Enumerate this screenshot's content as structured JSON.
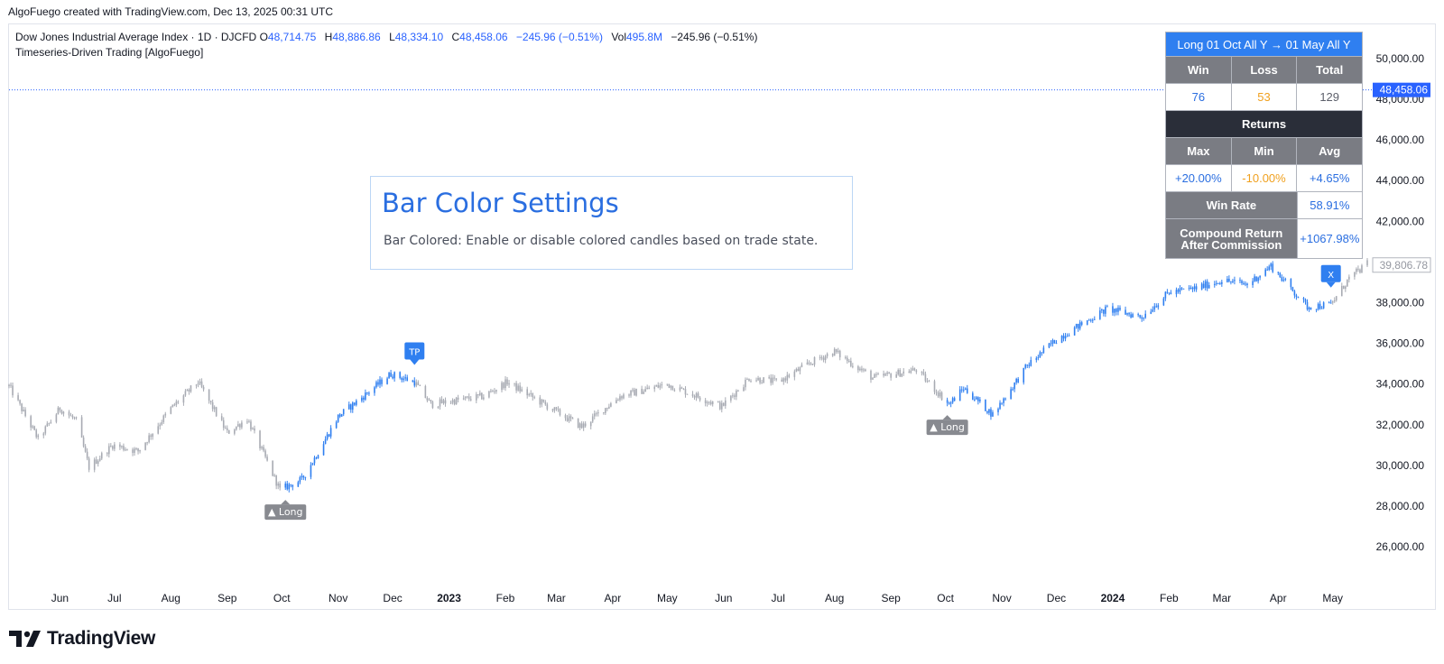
{
  "header": {
    "caption": "AlgoFuego created with TradingView.com, Dec 13, 2025 00:31 UTC"
  },
  "legend": {
    "symbol": "Dow Jones Industrial Average Index · 1D · DJCFD",
    "o_label": "O",
    "o_value": "48,714.75",
    "h_label": "H",
    "h_value": "48,886.86",
    "l_label": "L",
    "l_value": "48,334.10",
    "c_label": "C",
    "c_value": "48,458.06",
    "change": "−245.96 (−0.51%)",
    "vol_label": "Vol",
    "vol_value": "495.8M",
    "change2": "−245.96 (−0.51%)",
    "indicator": "Timeseries-Driven Trading [AlgoFuego]"
  },
  "settings_box": {
    "title": "Bar Color Settings",
    "description": "Bar Colored: Enable or disable colored candles based on trade state."
  },
  "stats_table": {
    "header": "Long 01 Oct All Y → 01 May All Y",
    "win_label": "Win",
    "loss_label": "Loss",
    "total_label": "Total",
    "win": "76",
    "loss": "53",
    "total": "129",
    "returns_label": "Returns",
    "max_label": "Max",
    "min_label": "Min",
    "avg_label": "Avg",
    "max": "+20.00%",
    "min": "-10.00%",
    "avg": "+4.65%",
    "winrate_label": "Win Rate",
    "winrate": "58.91%",
    "compound_label_1": "Compound Return",
    "compound_label_2": "After Commission",
    "compound": "+1067.98%"
  },
  "price_labels": {
    "last_price": "48,458.06",
    "marker_price": "39,806.78"
  },
  "markers": {
    "long_label": "▲ Long",
    "tp_label": "TP",
    "exit_label": "X"
  },
  "branding": {
    "logo_text": "TradingView"
  },
  "colors": {
    "in_trade": "#2f7ff0",
    "out_of_trade": "#a8abb3",
    "accent": "#2962ff",
    "loss": "#f0a01e"
  },
  "chart_data": {
    "type": "candlestick",
    "y_ticks": [
      "50,000.00",
      "48,000.00",
      "46,000.00",
      "44,000.00",
      "42,000.00",
      "40,000.00",
      "38,000.00",
      "36,000.00",
      "34,000.00",
      "32,000.00",
      "30,000.00",
      "28,000.00",
      "26,000.00"
    ],
    "y_tick_values": [
      50000,
      48000,
      46000,
      44000,
      42000,
      40000,
      38000,
      36000,
      34000,
      32000,
      30000,
      28000,
      26000
    ],
    "ylim": [
      24500,
      51500
    ],
    "x_ticks": [
      {
        "label": "Jun",
        "date": "2022-06-01",
        "bold": false
      },
      {
        "label": "Jul",
        "date": "2022-07-01",
        "bold": false
      },
      {
        "label": "Aug",
        "date": "2022-08-01",
        "bold": false
      },
      {
        "label": "Sep",
        "date": "2022-09-01",
        "bold": false
      },
      {
        "label": "Oct",
        "date": "2022-10-01",
        "bold": false
      },
      {
        "label": "Nov",
        "date": "2022-11-01",
        "bold": false
      },
      {
        "label": "Dec",
        "date": "2022-12-01",
        "bold": false
      },
      {
        "label": "2023",
        "date": "2023-01-01",
        "bold": true
      },
      {
        "label": "Feb",
        "date": "2023-02-01",
        "bold": false
      },
      {
        "label": "Mar",
        "date": "2023-03-01",
        "bold": false
      },
      {
        "label": "Apr",
        "date": "2023-04-01",
        "bold": false
      },
      {
        "label": "May",
        "date": "2023-05-01",
        "bold": false
      },
      {
        "label": "Jun",
        "date": "2023-06-01",
        "bold": false
      },
      {
        "label": "Jul",
        "date": "2023-07-01",
        "bold": false
      },
      {
        "label": "Aug",
        "date": "2023-08-01",
        "bold": false
      },
      {
        "label": "Sep",
        "date": "2023-09-01",
        "bold": false
      },
      {
        "label": "Oct",
        "date": "2023-10-01",
        "bold": false
      },
      {
        "label": "Nov",
        "date": "2023-11-01",
        "bold": false
      },
      {
        "label": "Dec",
        "date": "2023-12-01",
        "bold": false
      },
      {
        "label": "2024",
        "date": "2024-01-01",
        "bold": true
      },
      {
        "label": "Feb",
        "date": "2024-02-01",
        "bold": false
      },
      {
        "label": "Mar",
        "date": "2024-03-01",
        "bold": false
      },
      {
        "label": "Apr",
        "date": "2024-04-01",
        "bold": false
      },
      {
        "label": "May",
        "date": "2024-05-01",
        "bold": false
      }
    ],
    "x_range": [
      "2022-05-04",
      "2024-05-20"
    ],
    "price_path": [
      [
        "2022-05-04",
        33900
      ],
      [
        "2022-05-20",
        31300
      ],
      [
        "2022-06-01",
        32800
      ],
      [
        "2022-06-10",
        32200
      ],
      [
        "2022-06-17",
        29900
      ],
      [
        "2022-06-30",
        31000
      ],
      [
        "2022-07-14",
        30700
      ],
      [
        "2022-08-01",
        32800
      ],
      [
        "2022-08-16",
        34100
      ],
      [
        "2022-09-01",
        31600
      ],
      [
        "2022-09-12",
        32300
      ],
      [
        "2022-09-30",
        28800
      ],
      [
        "2022-10-12",
        29300
      ],
      [
        "2022-10-20",
        30500
      ],
      [
        "2022-11-01",
        32400
      ],
      [
        "2022-11-30",
        34500
      ],
      [
        "2022-12-13",
        34100
      ],
      [
        "2022-12-22",
        33000
      ],
      [
        "2023-01-05",
        33200
      ],
      [
        "2023-01-20",
        33400
      ],
      [
        "2023-02-02",
        34100
      ],
      [
        "2023-02-28",
        32700
      ],
      [
        "2023-03-15",
        31900
      ],
      [
        "2023-04-05",
        33400
      ],
      [
        "2023-05-01",
        34000
      ],
      [
        "2023-05-31",
        32900
      ],
      [
        "2023-06-15",
        34300
      ],
      [
        "2023-07-01",
        34100
      ],
      [
        "2023-07-20",
        35100
      ],
      [
        "2023-08-01",
        35600
      ],
      [
        "2023-08-22",
        34300
      ],
      [
        "2023-09-15",
        34700
      ],
      [
        "2023-10-03",
        33000
      ],
      [
        "2023-10-11",
        33800
      ],
      [
        "2023-10-27",
        32500
      ],
      [
        "2023-11-15",
        34900
      ],
      [
        "2023-12-01",
        36200
      ],
      [
        "2023-12-29",
        37700
      ],
      [
        "2024-01-17",
        37300
      ],
      [
        "2024-02-01",
        38500
      ],
      [
        "2024-02-15",
        38700
      ],
      [
        "2024-03-01",
        39100
      ],
      [
        "2024-03-15",
        38900
      ],
      [
        "2024-03-28",
        39800
      ],
      [
        "2024-04-17",
        37800
      ],
      [
        "2024-04-30",
        37900
      ],
      [
        "2024-05-10",
        39200
      ],
      [
        "2024-05-20",
        39900
      ]
    ],
    "trades": [
      {
        "entry": "2022-10-03",
        "exit": "2022-12-13",
        "result": "TP"
      },
      {
        "entry": "2023-10-02",
        "exit": "2024-04-30",
        "result": "X"
      }
    ],
    "last_price": 48458.06
  }
}
